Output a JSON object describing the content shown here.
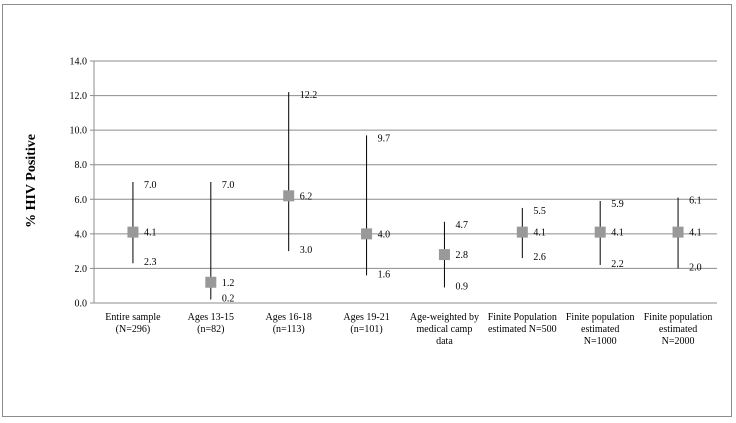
{
  "chart_data": {
    "type": "scatter",
    "title": "",
    "xlabel": "",
    "ylabel": "% HIV Positive",
    "ylim": [
      0,
      14
    ],
    "yticks": [
      "0.0",
      "2.0",
      "4.0",
      "6.0",
      "8.0",
      "10.0",
      "12.0",
      "14.0"
    ],
    "grid": true,
    "legend": "none",
    "marker_color": "#999999",
    "errorbar_color": "#000000",
    "categories": [
      {
        "lines": [
          "Entire sample",
          "(N=296)"
        ]
      },
      {
        "lines": [
          "Ages 13-15",
          "(n=82)"
        ]
      },
      {
        "lines": [
          "Ages 16-18",
          "(n=113)"
        ]
      },
      {
        "lines": [
          "Ages 19-21",
          "(n=101)"
        ]
      },
      {
        "lines": [
          "Age-weighted by",
          "medical camp",
          "data"
        ]
      },
      {
        "lines": [
          "Finite   Population",
          "estimated N=500"
        ]
      },
      {
        "lines": [
          "Finite population",
          "estimated",
          "N=1000"
        ]
      },
      {
        "lines": [
          "Finite population",
          "estimated",
          "N=2000"
        ]
      }
    ],
    "points": [
      {
        "value": 4.1,
        "upper": 7.0,
        "lower": 2.3,
        "value_label": "4.1",
        "upper_label": "7.0",
        "lower_label": "2.3"
      },
      {
        "value": 1.2,
        "upper": 7.0,
        "lower": 0.2,
        "value_label": "1.2",
        "upper_label": "7.0",
        "lower_label": "0.2"
      },
      {
        "value": 6.2,
        "upper": 12.2,
        "lower": 3.0,
        "value_label": "6.2",
        "upper_label": "12.2",
        "lower_label": "3.0"
      },
      {
        "value": 4.0,
        "upper": 9.7,
        "lower": 1.6,
        "value_label": "4.0",
        "upper_label": "9.7",
        "lower_label": "1.6"
      },
      {
        "value": 2.8,
        "upper": 4.7,
        "lower": 0.9,
        "value_label": "2.8",
        "upper_label": "4.7",
        "lower_label": "0.9"
      },
      {
        "value": 4.1,
        "upper": 5.5,
        "lower": 2.6,
        "value_label": "4.1",
        "upper_label": "5.5",
        "lower_label": "2.6"
      },
      {
        "value": 4.1,
        "upper": 5.9,
        "lower": 2.2,
        "value_label": "4.1",
        "upper_label": "5.9",
        "lower_label": "2.2"
      },
      {
        "value": 4.1,
        "upper": 6.1,
        "lower": 2.0,
        "value_label": "4.1",
        "upper_label": "6.1",
        "lower_label": "2.0"
      }
    ]
  }
}
